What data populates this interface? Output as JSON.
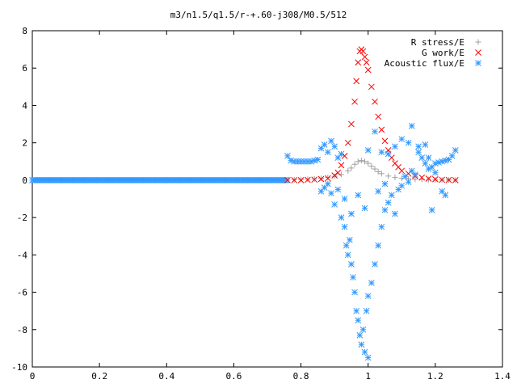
{
  "chart_data": {
    "type": "scatter",
    "title": "m3/n1.5/q1.5/r-+.60-j308/M0.5/512",
    "xlabel": "",
    "ylabel": "",
    "xlim": [
      0,
      1.4
    ],
    "ylim": [
      -10,
      8
    ],
    "x_ticks": [
      "0",
      "0.2",
      "0.4",
      "0.6",
      "0.8",
      "1",
      "1.2",
      "1.4"
    ],
    "y_ticks": [
      "8",
      "6",
      "4",
      "2",
      "0",
      "-2",
      "-4",
      "-6",
      "-8",
      "-10"
    ],
    "grid": false,
    "legend_position": "top-right",
    "series": [
      {
        "name": "R stress/E",
        "marker": "plus",
        "color": "#a0a0a0",
        "points": [
          [
            0.76,
            0.0
          ],
          [
            0.78,
            0.02
          ],
          [
            0.8,
            0.03
          ],
          [
            0.82,
            0.05
          ],
          [
            0.84,
            0.07
          ],
          [
            0.86,
            0.1
          ],
          [
            0.88,
            0.14
          ],
          [
            0.9,
            0.2
          ],
          [
            0.92,
            0.3
          ],
          [
            0.94,
            0.5
          ],
          [
            0.95,
            0.65
          ],
          [
            0.96,
            0.85
          ],
          [
            0.97,
            1.0
          ],
          [
            0.98,
            1.05
          ],
          [
            0.99,
            1.0
          ],
          [
            1.0,
            0.9
          ],
          [
            1.01,
            0.75
          ],
          [
            1.02,
            0.6
          ],
          [
            1.03,
            0.45
          ],
          [
            1.04,
            0.35
          ],
          [
            1.06,
            0.22
          ],
          [
            1.08,
            0.15
          ],
          [
            1.1,
            0.1
          ],
          [
            1.12,
            0.07
          ],
          [
            1.14,
            0.05
          ],
          [
            1.16,
            0.04
          ],
          [
            1.18,
            0.03
          ],
          [
            1.2,
            0.02
          ],
          [
            1.22,
            0.01
          ],
          [
            1.24,
            0.01
          ],
          [
            1.26,
            0.0
          ]
        ]
      },
      {
        "name": "G work/E",
        "marker": "cross",
        "color": "#ff0000",
        "points": [
          [
            0.76,
            0.0
          ],
          [
            0.78,
            0.0
          ],
          [
            0.8,
            0.0
          ],
          [
            0.82,
            0.02
          ],
          [
            0.84,
            0.03
          ],
          [
            0.86,
            0.06
          ],
          [
            0.88,
            0.1
          ],
          [
            0.9,
            0.25
          ],
          [
            0.91,
            0.4
          ],
          [
            0.92,
            0.8
          ],
          [
            0.93,
            1.3
          ],
          [
            0.94,
            2.0
          ],
          [
            0.95,
            3.0
          ],
          [
            0.96,
            4.2
          ],
          [
            0.965,
            5.3
          ],
          [
            0.97,
            6.3
          ],
          [
            0.975,
            6.9
          ],
          [
            0.98,
            7.0
          ],
          [
            0.985,
            6.9
          ],
          [
            0.99,
            6.6
          ],
          [
            0.995,
            6.3
          ],
          [
            1.0,
            5.9
          ],
          [
            1.01,
            5.0
          ],
          [
            1.02,
            4.2
          ],
          [
            1.03,
            3.4
          ],
          [
            1.04,
            2.7
          ],
          [
            1.05,
            2.1
          ],
          [
            1.06,
            1.6
          ],
          [
            1.07,
            1.2
          ],
          [
            1.08,
            0.9
          ],
          [
            1.09,
            0.7
          ],
          [
            1.1,
            0.5
          ],
          [
            1.12,
            0.35
          ],
          [
            1.14,
            0.22
          ],
          [
            1.16,
            0.14
          ],
          [
            1.18,
            0.08
          ],
          [
            1.2,
            0.05
          ],
          [
            1.22,
            0.02
          ],
          [
            1.24,
            0.01
          ],
          [
            1.26,
            0.0
          ]
        ]
      },
      {
        "name": "Acoustic flux/E",
        "marker": "star",
        "color": "#3399ff",
        "points": [
          [
            0.76,
            1.3
          ],
          [
            0.77,
            1.05
          ],
          [
            0.78,
            1.0
          ],
          [
            0.79,
            1.0
          ],
          [
            0.8,
            1.0
          ],
          [
            0.81,
            1.0
          ],
          [
            0.82,
            1.0
          ],
          [
            0.83,
            1.0
          ],
          [
            0.84,
            1.05
          ],
          [
            0.85,
            1.1
          ],
          [
            0.86,
            1.7
          ],
          [
            0.87,
            1.9
          ],
          [
            0.88,
            1.5
          ],
          [
            0.89,
            2.1
          ],
          [
            0.9,
            1.8
          ],
          [
            0.91,
            1.2
          ],
          [
            0.92,
            1.4
          ],
          [
            0.86,
            -0.6
          ],
          [
            0.87,
            -0.4
          ],
          [
            0.88,
            -0.2
          ],
          [
            0.89,
            -0.7
          ],
          [
            0.9,
            -1.3
          ],
          [
            0.91,
            -0.5
          ],
          [
            0.92,
            -2.0
          ],
          [
            0.93,
            -2.5
          ],
          [
            0.935,
            -3.5
          ],
          [
            0.94,
            -4.0
          ],
          [
            0.945,
            -3.2
          ],
          [
            0.95,
            -4.5
          ],
          [
            0.955,
            -5.2
          ],
          [
            0.96,
            -6.0
          ],
          [
            0.965,
            -7.0
          ],
          [
            0.97,
            -7.5
          ],
          [
            0.975,
            -8.3
          ],
          [
            0.98,
            -8.8
          ],
          [
            0.99,
            -9.2
          ],
          [
            1.0,
            -9.5
          ],
          [
            0.985,
            -8.0
          ],
          [
            0.995,
            -7.0
          ],
          [
            1.0,
            -6.2
          ],
          [
            1.01,
            -5.5
          ],
          [
            1.02,
            -4.5
          ],
          [
            1.03,
            -3.5
          ],
          [
            1.04,
            -2.5
          ],
          [
            1.05,
            -1.6
          ],
          [
            1.06,
            -1.2
          ],
          [
            1.07,
            -0.8
          ],
          [
            1.08,
            -1.8
          ],
          [
            1.09,
            -0.5
          ],
          [
            1.1,
            -0.3
          ],
          [
            1.11,
            0.2
          ],
          [
            1.12,
            -0.1
          ],
          [
            1.13,
            0.5
          ],
          [
            1.14,
            0.3
          ],
          [
            1.15,
            1.8
          ],
          [
            1.16,
            1.2
          ],
          [
            1.17,
            0.9
          ],
          [
            1.18,
            0.6
          ],
          [
            1.19,
            0.7
          ],
          [
            1.2,
            0.9
          ],
          [
            1.21,
            0.95
          ],
          [
            1.22,
            1.0
          ],
          [
            1.23,
            1.05
          ],
          [
            1.24,
            1.1
          ],
          [
            1.25,
            1.3
          ],
          [
            1.26,
            1.6
          ],
          [
            1.0,
            1.6
          ],
          [
            1.02,
            2.6
          ],
          [
            1.04,
            1.5
          ],
          [
            1.06,
            1.4
          ],
          [
            1.08,
            1.8
          ],
          [
            1.1,
            2.2
          ],
          [
            1.12,
            2.0
          ],
          [
            1.13,
            2.9
          ],
          [
            1.15,
            1.5
          ],
          [
            1.17,
            1.9
          ],
          [
            1.18,
            1.2
          ],
          [
            1.2,
            0.4
          ],
          [
            1.22,
            -0.6
          ],
          [
            1.23,
            -0.8
          ],
          [
            1.19,
            -1.6
          ],
          [
            0.97,
            -0.8
          ],
          [
            0.99,
            -1.5
          ],
          [
            1.03,
            -0.6
          ],
          [
            1.05,
            -0.2
          ],
          [
            0.93,
            -1.0
          ],
          [
            0.95,
            -1.8
          ]
        ]
      }
    ]
  }
}
